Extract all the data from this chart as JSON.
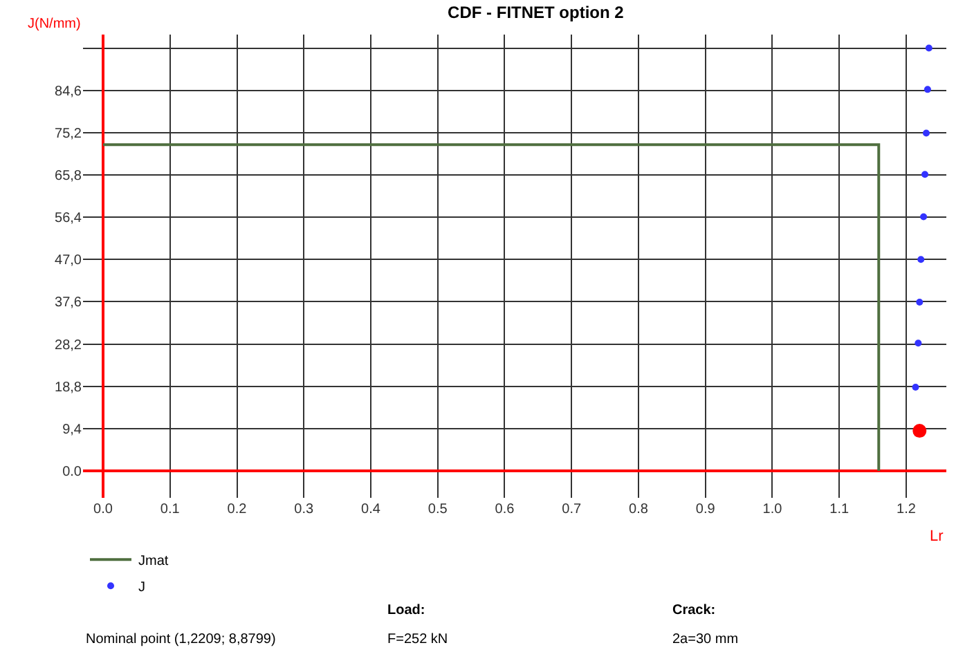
{
  "chart_data": {
    "type": "line",
    "title": "CDF - FITNET option 2",
    "xlabel": "Lr",
    "ylabel": "J(N/mm)",
    "xlim": [
      -0.03,
      1.26
    ],
    "ylim": [
      -6,
      97
    ],
    "xticks": [
      {
        "value": 0,
        "label": "0.0"
      },
      0.1,
      0.2,
      0.3,
      0.4,
      0.5,
      0.6,
      0.7,
      0.8,
      0.9,
      {
        "value": 1,
        "label": "1.0"
      },
      1.1,
      1.2
    ],
    "yticks": [
      {
        "value": 0,
        "label": "0.0"
      },
      {
        "value": 9.4,
        "label": "9,4"
      },
      {
        "value": 18.8,
        "label": "18,8"
      },
      {
        "value": 28.2,
        "label": "28,2"
      },
      {
        "value": 37.6,
        "label": "37,6"
      },
      {
        "value": 47.0,
        "label": "47,0"
      },
      {
        "value": 56.4,
        "label": "56,4"
      },
      {
        "value": 65.8,
        "label": "65,8"
      },
      {
        "value": 75.2,
        "label": "75,2"
      },
      {
        "value": 84.6,
        "label": "84,6"
      },
      {
        "value": 94,
        "label": null
      }
    ],
    "grid": true,
    "legend": "bottom left",
    "series": [
      {
        "name": "Jmat",
        "color": "#4f6f3f",
        "x": [
          0,
          1.159,
          1.159
        ],
        "values": [
          72.5,
          72.5,
          0
        ]
      },
      {
        "name": "J",
        "type": "scatter",
        "marker": "circle",
        "color": "#3333ff",
        "x": [
          1.234,
          1.232,
          1.23,
          1.228,
          1.226,
          1.222,
          1.22,
          1.218,
          1.214
        ],
        "values": [
          94.0,
          84.8,
          75.1,
          65.9,
          56.5,
          47.0,
          37.5,
          28.4,
          18.6
        ]
      },
      {
        "type": "scatter",
        "marker": "circle",
        "color": "#ff0000",
        "x": [
          1.22
        ],
        "values": [
          8.9
        ]
      }
    ],
    "annotations": [
      "Nominal point (1,2209; 8,8799)",
      "Load:",
      "F=252 kN",
      "Crack:",
      "2a=30 mm"
    ]
  }
}
